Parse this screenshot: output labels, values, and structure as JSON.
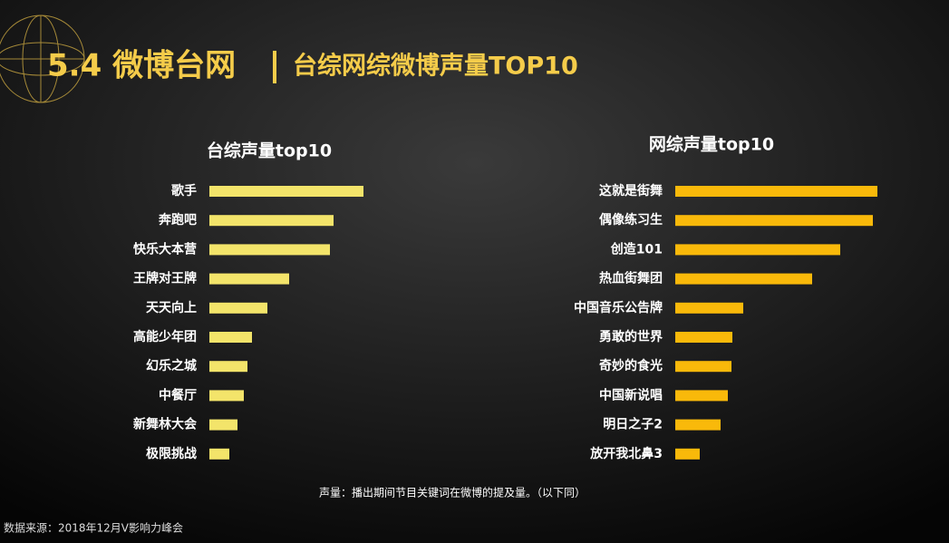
{
  "header": {
    "section": "5.4 微博台网",
    "title": "台综网综微博声量TOP10"
  },
  "note": "声量：播出期间节目关键词在微博的提及量。（以下同）",
  "source": "数据来源：2018年12月V影响力峰会",
  "chart_data": [
    {
      "type": "hbar",
      "title": "台综声量top10",
      "color": "#f3e46a",
      "categories": [
        "歌手",
        "奔跑吧",
        "快乐大本营",
        "王牌对王牌",
        "天天向上",
        "高能少年团",
        "幻乐之城",
        "中餐厅",
        "新舞林大会",
        "极限挑战"
      ],
      "values": [
        170,
        137,
        133,
        88,
        64,
        47,
        42,
        38,
        31,
        22
      ]
    },
    {
      "type": "hbar",
      "title": "网综声量top10",
      "color": "#f9b90a",
      "categories": [
        "这就是街舞",
        "偶像练习生",
        "创造101",
        "热血街舞团",
        "中国音乐公告牌",
        "勇敢的世界",
        "奇妙的食光",
        "中国新说唱",
        "明日之子2",
        "放开我北鼻3"
      ],
      "values": [
        223,
        218,
        182,
        151,
        75,
        63,
        62,
        58,
        50,
        27
      ]
    }
  ]
}
